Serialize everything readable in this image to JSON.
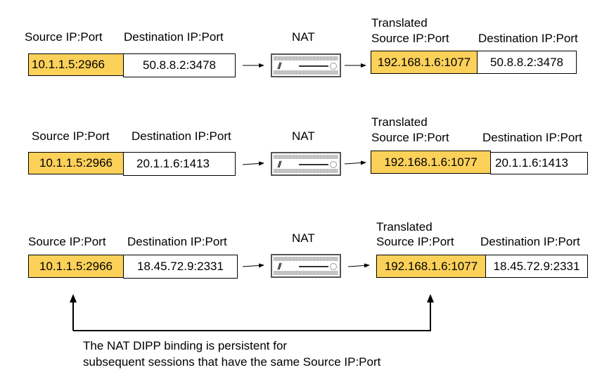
{
  "labels": {
    "source": "Source IP:Port",
    "destination": "Destination IP:Port",
    "nat": "NAT",
    "translated": "Translated",
    "translated_source": "Source IP:Port"
  },
  "rows": [
    {
      "source": "10.1.1.5:2966",
      "destination": "50.8.8.2:3478",
      "translated_source": "192.168.1.6:1077",
      "translated_destination": "50.8.8.2:3478"
    },
    {
      "source": "10.1.1.5:2966",
      "destination": "20.1.1.6:1413",
      "translated_source": "192.168.1.6:1077",
      "translated_destination": "20.1.1.6:1413"
    },
    {
      "source": "10.1.1.5:2966",
      "destination": "18.45.72.9:2331",
      "translated_source": "192.168.1.6:1077",
      "translated_destination": "18.45.72.9:2331"
    }
  ],
  "note": {
    "line1": "The NAT DIPP binding is persistent for",
    "line2": "subsequent sessions that have the same Source IP:Port"
  },
  "colors": {
    "highlight": "#fcd15a"
  }
}
